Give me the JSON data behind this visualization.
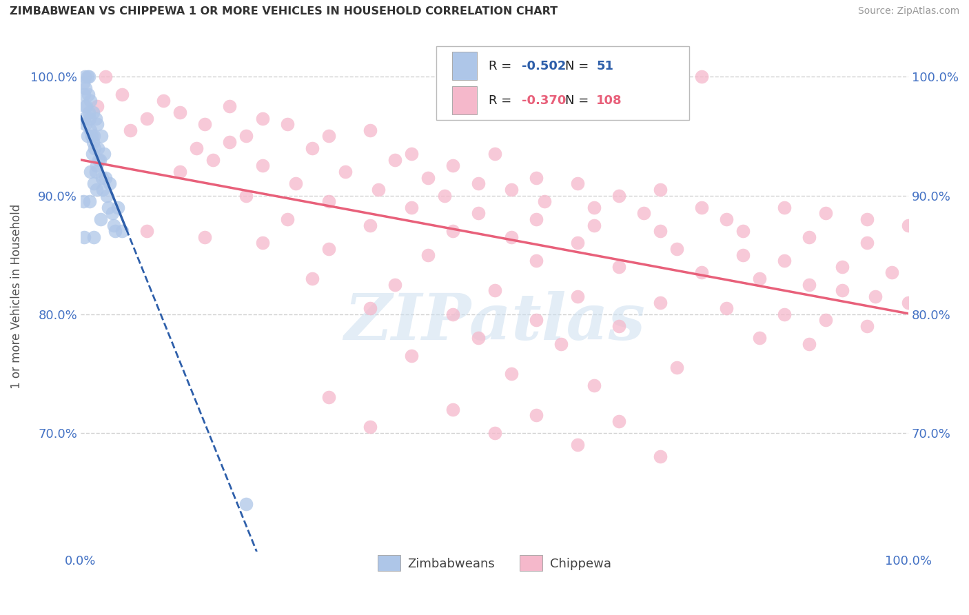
{
  "title": "ZIMBABWEAN VS CHIPPEWA 1 OR MORE VEHICLES IN HOUSEHOLD CORRELATION CHART",
  "source": "Source: ZipAtlas.com",
  "ylabel": "1 or more Vehicles in Household",
  "xlim": [
    0,
    100
  ],
  "ylim": [
    60,
    103
  ],
  "yticks": [
    70,
    80,
    90,
    100
  ],
  "ytick_labels": [
    "70.0%",
    "80.0%",
    "90.0%",
    "100.0%"
  ],
  "zimbabwean_color": "#aec6e8",
  "chippewa_color": "#f5b8cb",
  "zimbabwean_line_color": "#2e5faa",
  "chippewa_line_color": "#e8607a",
  "watermark_text": "ZIPatlas",
  "zimbabwean_points": [
    [
      0.5,
      100.0
    ],
    [
      0.8,
      100.0
    ],
    [
      1.0,
      100.0
    ],
    [
      0.3,
      99.5
    ],
    [
      0.6,
      99.0
    ],
    [
      0.4,
      98.5
    ],
    [
      0.9,
      98.5
    ],
    [
      1.2,
      98.0
    ],
    [
      0.5,
      97.5
    ],
    [
      0.7,
      97.5
    ],
    [
      1.0,
      97.0
    ],
    [
      1.5,
      97.0
    ],
    [
      0.4,
      96.5
    ],
    [
      1.1,
      96.5
    ],
    [
      1.8,
      96.5
    ],
    [
      2.0,
      96.0
    ],
    [
      0.6,
      96.0
    ],
    [
      1.2,
      95.5
    ],
    [
      1.3,
      95.0
    ],
    [
      1.6,
      95.0
    ],
    [
      2.5,
      95.0
    ],
    [
      0.8,
      95.0
    ],
    [
      1.5,
      94.5
    ],
    [
      2.1,
      94.0
    ],
    [
      1.7,
      94.0
    ],
    [
      1.4,
      93.5
    ],
    [
      2.8,
      93.5
    ],
    [
      2.2,
      93.0
    ],
    [
      2.3,
      93.0
    ],
    [
      1.9,
      92.5
    ],
    [
      1.8,
      92.0
    ],
    [
      1.2,
      92.0
    ],
    [
      3.0,
      91.5
    ],
    [
      2.6,
      91.5
    ],
    [
      3.5,
      91.0
    ],
    [
      1.6,
      91.0
    ],
    [
      1.9,
      90.5
    ],
    [
      2.7,
      90.5
    ],
    [
      3.2,
      90.0
    ],
    [
      0.3,
      89.5
    ],
    [
      1.1,
      89.5
    ],
    [
      3.3,
      89.0
    ],
    [
      4.5,
      89.0
    ],
    [
      3.8,
      88.5
    ],
    [
      2.4,
      88.0
    ],
    [
      4.0,
      87.5
    ],
    [
      4.2,
      87.0
    ],
    [
      5.0,
      87.0
    ],
    [
      0.4,
      86.5
    ],
    [
      1.6,
      86.5
    ],
    [
      20.0,
      64.0
    ]
  ],
  "chippewa_points": [
    [
      3.0,
      100.0
    ],
    [
      75.0,
      100.0
    ],
    [
      5.0,
      98.5
    ],
    [
      10.0,
      98.0
    ],
    [
      18.0,
      97.5
    ],
    [
      2.0,
      97.5
    ],
    [
      12.0,
      97.0
    ],
    [
      22.0,
      96.5
    ],
    [
      8.0,
      96.5
    ],
    [
      15.0,
      96.0
    ],
    [
      25.0,
      96.0
    ],
    [
      35.0,
      95.5
    ],
    [
      6.0,
      95.5
    ],
    [
      20.0,
      95.0
    ],
    [
      30.0,
      95.0
    ],
    [
      18.0,
      94.5
    ],
    [
      14.0,
      94.0
    ],
    [
      28.0,
      94.0
    ],
    [
      40.0,
      93.5
    ],
    [
      50.0,
      93.5
    ],
    [
      16.0,
      93.0
    ],
    [
      38.0,
      93.0
    ],
    [
      22.0,
      92.5
    ],
    [
      45.0,
      92.5
    ],
    [
      32.0,
      92.0
    ],
    [
      12.0,
      92.0
    ],
    [
      42.0,
      91.5
    ],
    [
      55.0,
      91.5
    ],
    [
      26.0,
      91.0
    ],
    [
      48.0,
      91.0
    ],
    [
      60.0,
      91.0
    ],
    [
      36.0,
      90.5
    ],
    [
      52.0,
      90.5
    ],
    [
      70.0,
      90.5
    ],
    [
      20.0,
      90.0
    ],
    [
      44.0,
      90.0
    ],
    [
      65.0,
      90.0
    ],
    [
      30.0,
      89.5
    ],
    [
      56.0,
      89.5
    ],
    [
      75.0,
      89.0
    ],
    [
      40.0,
      89.0
    ],
    [
      62.0,
      89.0
    ],
    [
      85.0,
      89.0
    ],
    [
      48.0,
      88.5
    ],
    [
      68.0,
      88.5
    ],
    [
      90.0,
      88.5
    ],
    [
      25.0,
      88.0
    ],
    [
      55.0,
      88.0
    ],
    [
      78.0,
      88.0
    ],
    [
      35.0,
      87.5
    ],
    [
      62.0,
      87.5
    ],
    [
      95.0,
      88.0
    ],
    [
      45.0,
      87.0
    ],
    [
      70.0,
      87.0
    ],
    [
      100.0,
      87.5
    ],
    [
      8.0,
      87.0
    ],
    [
      80.0,
      87.0
    ],
    [
      15.0,
      86.5
    ],
    [
      52.0,
      86.5
    ],
    [
      88.0,
      86.5
    ],
    [
      22.0,
      86.0
    ],
    [
      60.0,
      86.0
    ],
    [
      95.0,
      86.0
    ],
    [
      30.0,
      85.5
    ],
    [
      72.0,
      85.5
    ],
    [
      42.0,
      85.0
    ],
    [
      80.0,
      85.0
    ],
    [
      55.0,
      84.5
    ],
    [
      85.0,
      84.5
    ],
    [
      65.0,
      84.0
    ],
    [
      92.0,
      84.0
    ],
    [
      75.0,
      83.5
    ],
    [
      98.0,
      83.5
    ],
    [
      28.0,
      83.0
    ],
    [
      82.0,
      83.0
    ],
    [
      38.0,
      82.5
    ],
    [
      88.0,
      82.5
    ],
    [
      50.0,
      82.0
    ],
    [
      92.0,
      82.0
    ],
    [
      60.0,
      81.5
    ],
    [
      96.0,
      81.5
    ],
    [
      70.0,
      81.0
    ],
    [
      100.0,
      81.0
    ],
    [
      35.0,
      80.5
    ],
    [
      78.0,
      80.5
    ],
    [
      45.0,
      80.0
    ],
    [
      85.0,
      80.0
    ],
    [
      55.0,
      79.5
    ],
    [
      90.0,
      79.5
    ],
    [
      65.0,
      79.0
    ],
    [
      95.0,
      79.0
    ],
    [
      48.0,
      78.0
    ],
    [
      82.0,
      78.0
    ],
    [
      58.0,
      77.5
    ],
    [
      88.0,
      77.5
    ],
    [
      40.0,
      76.5
    ],
    [
      72.0,
      75.5
    ],
    [
      52.0,
      75.0
    ],
    [
      62.0,
      74.0
    ],
    [
      30.0,
      73.0
    ],
    [
      45.0,
      72.0
    ],
    [
      55.0,
      71.5
    ],
    [
      65.0,
      71.0
    ],
    [
      35.0,
      70.5
    ],
    [
      50.0,
      70.0
    ],
    [
      60.0,
      69.0
    ],
    [
      70.0,
      68.0
    ]
  ]
}
